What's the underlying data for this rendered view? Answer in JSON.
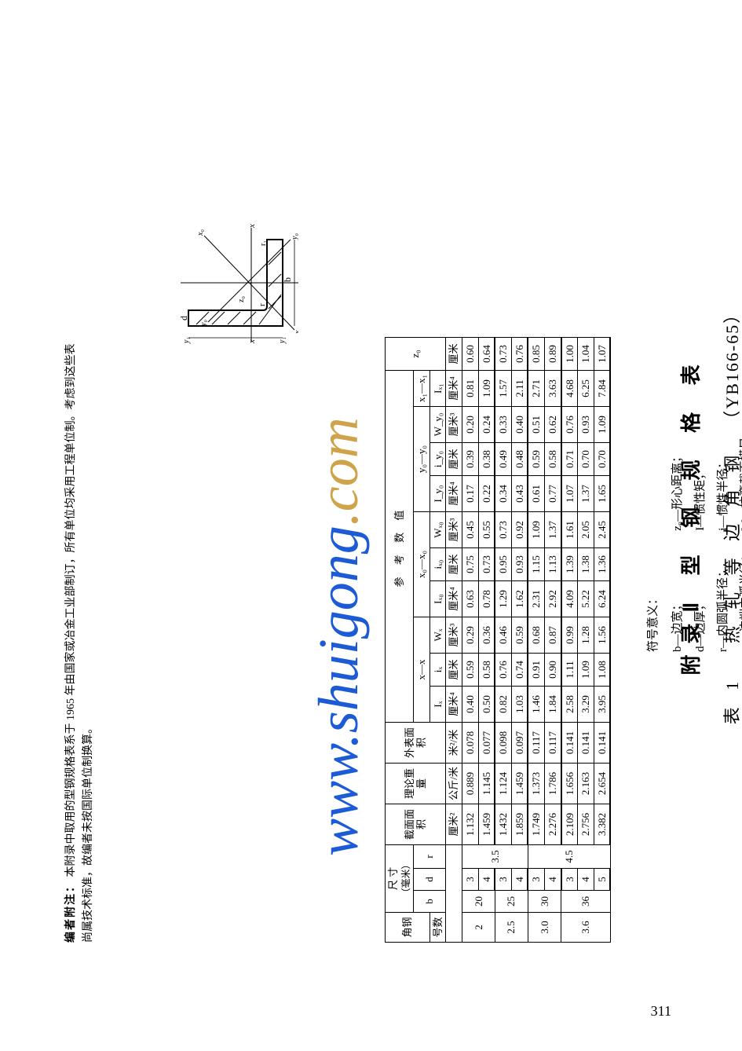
{
  "watermark": {
    "text_main": "www.shuigong",
    "text_end": ".com"
  },
  "titles": {
    "appendix": "附录Ⅱ  型 钢 规 格 表",
    "table_no": "表 1",
    "table_name": "热 轧 等 边 角 钢",
    "standard": "（YB166-65）"
  },
  "legend": {
    "header": "符号意义：",
    "rows": [
      {
        "l": "b—边宽；",
        "r": "z₀—形心距离；"
      },
      {
        "l": "d—边厚；",
        "r": "I—惯性矩；"
      },
      {
        "l": "r—内圆弧半径；",
        "r2": "i—惯性半径；"
      },
      {
        "l": "r₁—边端内弧半径；",
        "r2": "W—抗弯截面模量。"
      }
    ]
  },
  "diagram_labels": [
    "x",
    "y",
    "x₀",
    "y₀",
    "x₁",
    "y₁",
    "z₀",
    "b",
    "d",
    "r",
    "r₁"
  ],
  "table": {
    "section_header": "参        考        数        值",
    "head_row1": {
      "angle": "角钢",
      "dim": "尺  寸",
      "dim_unit": "（毫米）",
      "area": "截面面积",
      "weight": "理论重量",
      "surf": "外表面积",
      "xx": "x—x",
      "x0x0": "x₀—x₀",
      "y0y0": "y₀—y₀",
      "x1x1": "x₁—x₁",
      "z0": "z₀"
    },
    "head_row2": {
      "angle": "号数",
      "b": "b",
      "d": "d",
      "r": "r",
      "area_u": "厘米²",
      "weight_u": "公斤/米",
      "surf_u": "米²/米",
      "Ix": "Iₓ",
      "ix": "iₓ",
      "Wx": "Wₓ",
      "Ix0": "Iₓ₀",
      "ix0": "iₓ₀",
      "Wx0": "Wₓ₀",
      "Iy0": "I_y₀",
      "iy0": "i_y₀",
      "Wy0": "W_y₀",
      "Ix1": "Iₓ₁",
      "z0_u": "厘米"
    },
    "unit_row": {
      "Ix": "厘米⁴",
      "ix": "厘米",
      "Wx": "厘米³",
      "Ix0": "厘米⁴",
      "ix0": "厘米",
      "Wx0": "厘米³",
      "Iy0": "厘米⁴",
      "iy0": "厘米",
      "Wy0": "厘米³",
      "Ix1": "厘米⁴"
    },
    "groups": [
      {
        "no": "2",
        "b": "20",
        "r": "3.5",
        "rows": [
          {
            "d": "3",
            "area": "1.132",
            "wt": "0.889",
            "surf": "0.078",
            "Ix": "0.40",
            "ix": "0.59",
            "Wx": "0.29",
            "Ix0": "0.63",
            "ix0": "0.75",
            "Wx0": "0.45",
            "Iy0": "0.17",
            "iy0": "0.39",
            "Wy0": "0.20",
            "Ix1": "0.81",
            "z0": "0.60"
          },
          {
            "d": "4",
            "area": "1.459",
            "wt": "1.145",
            "surf": "0.077",
            "Ix": "0.50",
            "ix": "0.58",
            "Wx": "0.36",
            "Ix0": "0.78",
            "ix0": "0.73",
            "Wx0": "0.55",
            "Iy0": "0.22",
            "iy0": "0.38",
            "Wy0": "0.24",
            "Ix1": "1.09",
            "z0": "0.64"
          }
        ]
      },
      {
        "no": "2.5",
        "b": "25",
        "r": "",
        "rows": [
          {
            "d": "3",
            "area": "1.432",
            "wt": "1.124",
            "surf": "0.098",
            "Ix": "0.82",
            "ix": "0.76",
            "Wx": "0.46",
            "Ix0": "1.29",
            "ix0": "0.95",
            "Wx0": "0.73",
            "Iy0": "0.34",
            "iy0": "0.49",
            "Wy0": "0.33",
            "Ix1": "1.57",
            "z0": "0.73"
          },
          {
            "d": "4",
            "area": "1.859",
            "wt": "1.459",
            "surf": "0.097",
            "Ix": "1.03",
            "ix": "0.74",
            "Wx": "0.59",
            "Ix0": "1.62",
            "ix0": "0.93",
            "Wx0": "0.92",
            "Iy0": "0.43",
            "iy0": "0.48",
            "Wy0": "0.40",
            "Ix1": "2.11",
            "z0": "0.76"
          }
        ]
      },
      {
        "no": "3.0",
        "b": "30",
        "r": "",
        "rows": [
          {
            "d": "3",
            "area": "1.749",
            "wt": "1.373",
            "surf": "0.117",
            "Ix": "1.46",
            "ix": "0.91",
            "Wx": "0.68",
            "Ix0": "2.31",
            "ix0": "1.15",
            "Wx0": "1.09",
            "Iy0": "0.61",
            "iy0": "0.59",
            "Wy0": "0.51",
            "Ix1": "2.71",
            "z0": "0.85"
          },
          {
            "d": "4",
            "area": "2.276",
            "wt": "1.786",
            "surf": "0.117",
            "Ix": "1.84",
            "ix": "0.90",
            "Wx": "0.87",
            "Ix0": "2.92",
            "ix0": "1.13",
            "Wx0": "1.37",
            "Iy0": "0.77",
            "iy0": "0.58",
            "Wy0": "0.62",
            "Ix1": "3.63",
            "z0": "0.89"
          }
        ]
      },
      {
        "no": "3.6",
        "b": "36",
        "r": "4.5",
        "rows": [
          {
            "d": "3",
            "area": "2.109",
            "wt": "1.656",
            "surf": "0.141",
            "Ix": "2.58",
            "ix": "1.11",
            "Wx": "0.99",
            "Ix0": "4.09",
            "ix0": "1.39",
            "Wx0": "1.61",
            "Iy0": "1.07",
            "iy0": "0.71",
            "Wy0": "0.76",
            "Ix1": "4.68",
            "z0": "1.00"
          },
          {
            "d": "4",
            "area": "2.756",
            "wt": "2.163",
            "surf": "0.141",
            "Ix": "3.29",
            "ix": "1.09",
            "Wx": "1.28",
            "Ix0": "5.22",
            "ix0": "1.38",
            "Wx0": "2.05",
            "Iy0": "1.37",
            "iy0": "0.70",
            "Wy0": "0.93",
            "Ix1": "6.25",
            "z0": "1.04"
          },
          {
            "d": "5",
            "area": "3.382",
            "wt": "2.654",
            "surf": "0.141",
            "Ix": "3.95",
            "ix": "1.08",
            "Wx": "1.56",
            "Ix0": "6.24",
            "ix0": "1.36",
            "Wx0": "2.45",
            "Iy0": "1.65",
            "iy0": "0.70",
            "Wy0": "1.09",
            "Ix1": "7.84",
            "z0": "1.07"
          }
        ]
      }
    ]
  },
  "footnote": {
    "label": "编者附注：",
    "line1": "本附录中取用的型钢规格表系于 1965 年由国家或冶金工业部制订，所有单位均采用工程单位制。考虑到这些表",
    "line2": "尚属技术标准，故编者未按国际单位制换算。"
  },
  "page_number": "311"
}
